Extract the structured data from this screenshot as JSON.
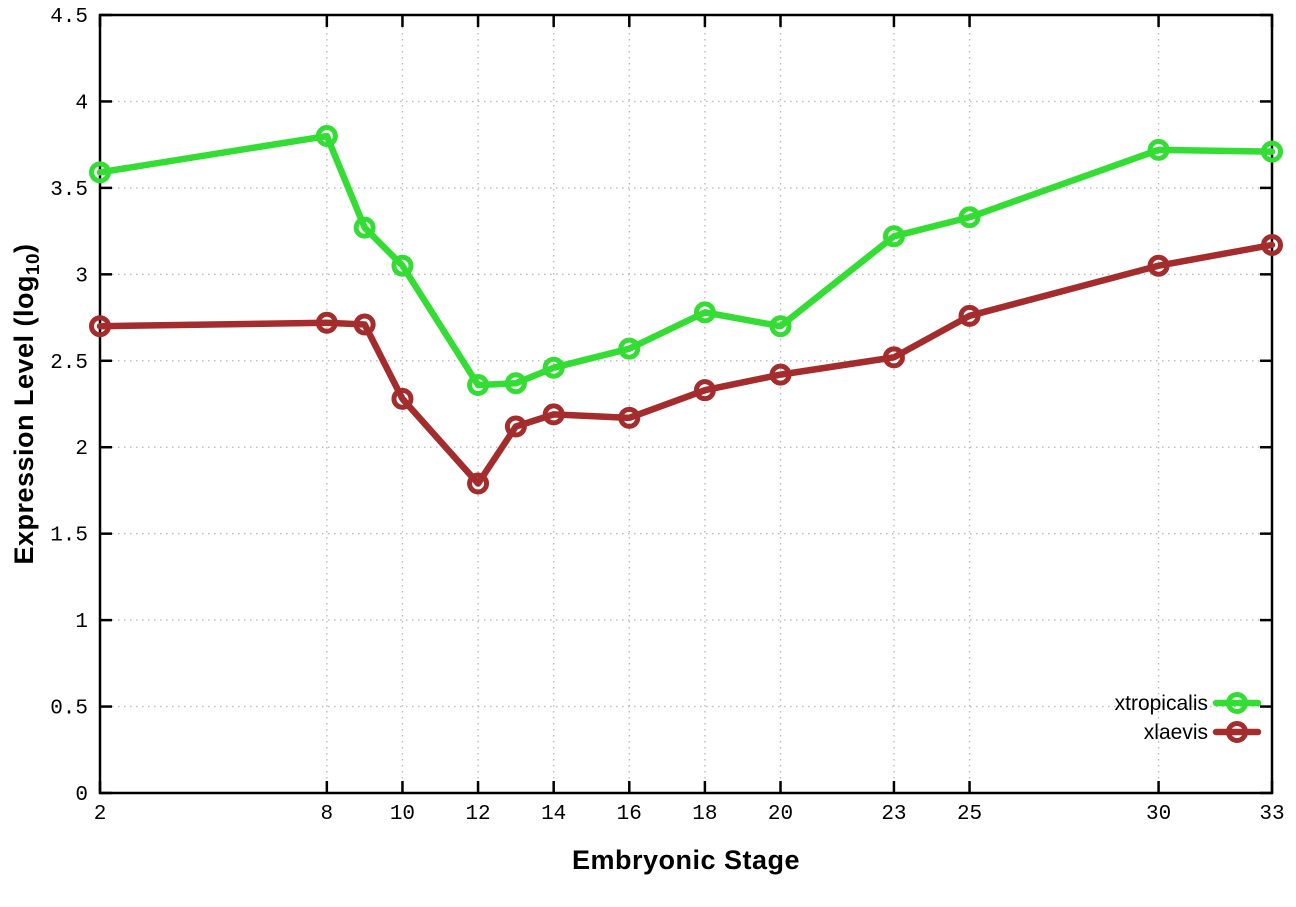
{
  "chart_data": {
    "type": "line",
    "title": "",
    "xlabel": "Embryonic Stage",
    "ylabel": {
      "prefix": "Expression Level (log",
      "sub": "10",
      "suffix": ")"
    },
    "xlim": [
      2,
      33
    ],
    "ylim": [
      0,
      4.5
    ],
    "x_ticks": [
      2,
      8,
      10,
      12,
      14,
      16,
      18,
      20,
      23,
      25,
      30,
      33
    ],
    "y_ticks": [
      0,
      0.5,
      1,
      1.5,
      2,
      2.5,
      3,
      3.5,
      4,
      4.5
    ],
    "grid": true,
    "legend_position": "bottom-right-inside",
    "x": [
      2,
      8,
      9,
      10,
      12,
      13,
      14,
      16,
      18,
      20,
      23,
      25,
      30,
      33
    ],
    "series": [
      {
        "name": "xtropicalis",
        "color": "#33dd33",
        "values": [
          3.59,
          3.8,
          3.27,
          3.05,
          2.36,
          2.37,
          2.46,
          2.57,
          2.78,
          2.7,
          3.22,
          3.33,
          3.72,
          3.71
        ]
      },
      {
        "name": "xlaevis",
        "color": "#a42c2c",
        "values": [
          2.7,
          2.72,
          2.71,
          2.28,
          1.79,
          2.12,
          2.19,
          2.17,
          2.33,
          2.42,
          2.52,
          2.76,
          3.05,
          3.17
        ]
      }
    ],
    "colors": {
      "grid": "#bbbbbb",
      "axis": "#000000",
      "background": "#ffffff"
    }
  }
}
